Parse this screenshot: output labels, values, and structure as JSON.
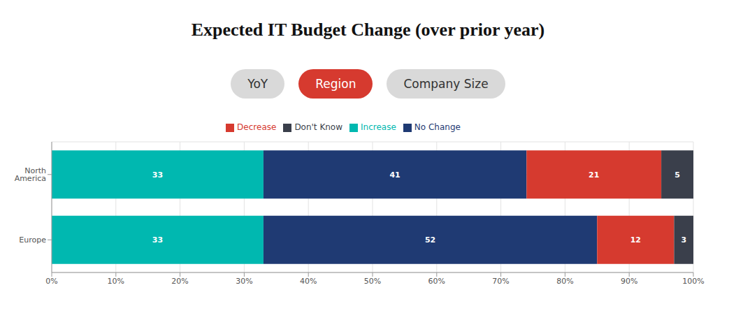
{
  "chart_data": {
    "type": "bar",
    "title": "Expected IT Budget Change (over prior year)",
    "tabs": [
      "YoY",
      "Region",
      "Company Size"
    ],
    "selected_tab": "Region",
    "orientation": "horizontal",
    "stacked": true,
    "data_labels": true,
    "grid": true,
    "legend": "top",
    "categories": [
      "North America",
      "Europe"
    ],
    "series": [
      {
        "name": "Increase",
        "color": "#00b8b0",
        "values": [
          33,
          33
        ]
      },
      {
        "name": "No Change",
        "color": "#1f3a73",
        "values": [
          41,
          52
        ]
      },
      {
        "name": "Decrease",
        "color": "#d63a2f",
        "values": [
          21,
          12
        ]
      },
      {
        "name": "Don't Know",
        "color": "#3a3f4b",
        "values": [
          5,
          3
        ]
      }
    ],
    "xlim": [
      0,
      100
    ],
    "xticks": [
      {
        "value": 0,
        "label": "0%"
      },
      {
        "value": 10,
        "label": "10%"
      },
      {
        "value": 20,
        "label": "20%"
      },
      {
        "value": 30,
        "label": "30%"
      },
      {
        "value": 40,
        "label": "40%"
      },
      {
        "value": 50,
        "label": "50%"
      },
      {
        "value": 60,
        "label": "60%"
      },
      {
        "value": 70,
        "label": "70%"
      },
      {
        "value": 80,
        "label": "80%"
      },
      {
        "value": 90,
        "label": "90%"
      },
      {
        "value": 100,
        "label": "100%"
      }
    ]
  }
}
